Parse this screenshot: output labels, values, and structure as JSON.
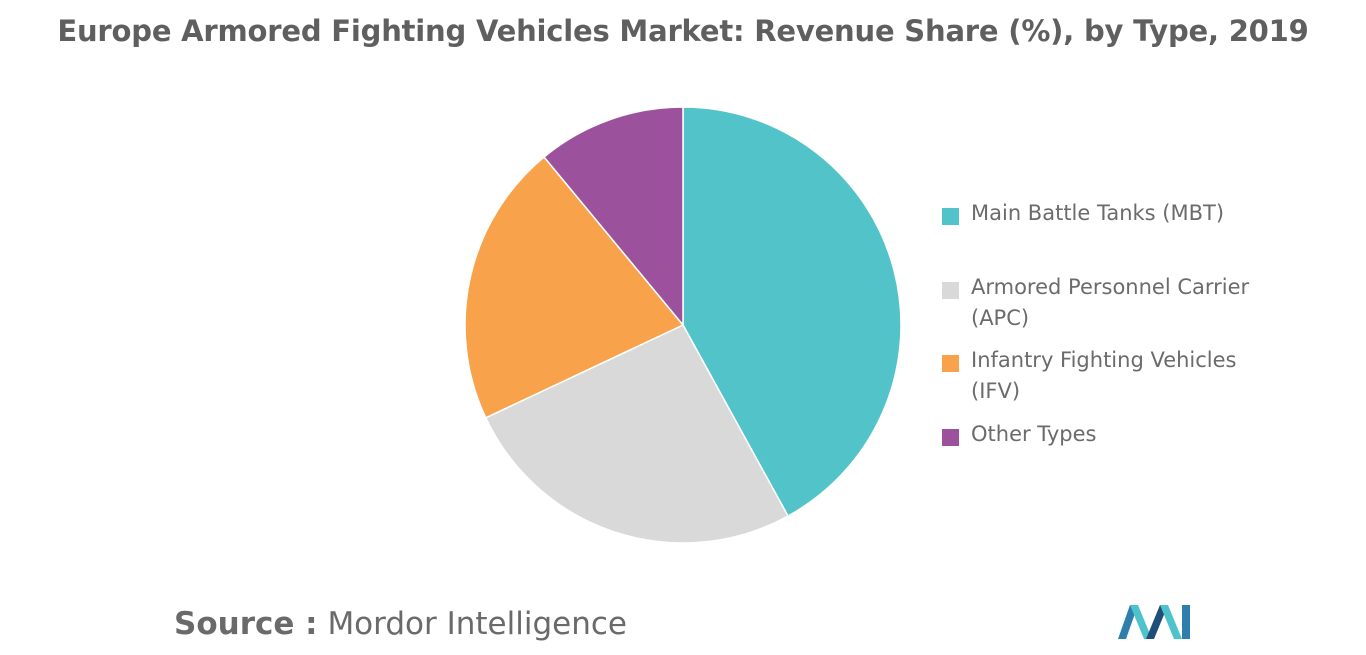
{
  "title": "Europe Armored Fighting Vehicles Market: Revenue Share (%), by Type, 2019",
  "source": {
    "prefix": "Source :",
    "name": "Mordor Intelligence"
  },
  "logo": {
    "icon": "mordor-intelligence-logo",
    "colors": [
      "#1f4e79",
      "#2f7fae",
      "#4fc3cc"
    ]
  },
  "legend": {
    "placement": "right",
    "items": [
      {
        "label": "Main Battle Tanks (MBT)",
        "color": "#52c4c9"
      },
      {
        "label": "Armored Personnel Carrier (APC)",
        "color": "#d9d9d9"
      },
      {
        "label": "Infantry Fighting Vehicles (IFV)",
        "color": "#f8a24b"
      },
      {
        "label": "Other Types",
        "color": "#9c519d"
      }
    ]
  },
  "chart_data": {
    "type": "pie",
    "title": "Europe Armored Fighting Vehicles Market: Revenue Share (%), by Type, 2019",
    "categories": [
      "Main Battle Tanks (MBT)",
      "Armored Personnel Carrier (APC)",
      "Infantry Fighting Vehicles (IFV)",
      "Other Types"
    ],
    "values": [
      42,
      26,
      21,
      11
    ],
    "colors": [
      "#52c4c9",
      "#d9d9d9",
      "#f8a24b",
      "#9c519d"
    ],
    "start": "12 o'clock",
    "direction": "clockwise",
    "data_labels": false,
    "legend": "right"
  }
}
